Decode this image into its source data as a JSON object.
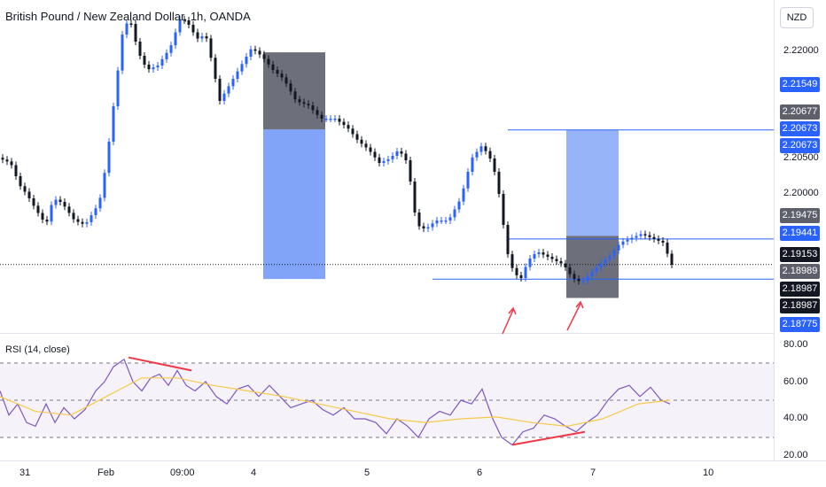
{
  "header": {
    "title": "British Pound / New Zealand Dollar, 1h, OANDA",
    "currency": "NZD"
  },
  "rsi": {
    "title": "RSI (14, close)",
    "levels": [
      30,
      50,
      70
    ],
    "axis_ticks": [
      "80.00",
      "60.00",
      "40.00",
      "20.00"
    ]
  },
  "price_axis": {
    "ticks": [
      "2.22000",
      "2.20500",
      "2.20000"
    ]
  },
  "price_labels": [
    {
      "text": "2.21549",
      "color": "#2962ff"
    },
    {
      "text": "2.20677",
      "color": "#5d606b"
    },
    {
      "text": "2.20673",
      "color": "#2962ff"
    },
    {
      "text": "2.20673",
      "color": "#2962ff"
    },
    {
      "text": "2.19475",
      "color": "#5d606b"
    },
    {
      "text": "2.19441",
      "color": "#2962ff"
    },
    {
      "text": "2.19153",
      "color": "#131722"
    },
    {
      "text": "2.18989",
      "color": "#5d606b"
    },
    {
      "text": "2.18987",
      "color": "#131722"
    },
    {
      "text": "2.18987",
      "color": "#131722"
    },
    {
      "text": "2.18775",
      "color": "#2962ff"
    }
  ],
  "x_axis": {
    "ticks": [
      "31",
      "Feb",
      "09:00",
      "4",
      "5",
      "6",
      "7",
      "10"
    ]
  },
  "colors": {
    "up": "#2962ff",
    "down": "#131722",
    "rsi_line": "#7e57c2",
    "rsi_ma": "#f7c948",
    "divergence": "#f23645",
    "level_line": "#2962ff",
    "zone_gray": "#5d606b",
    "zone_blue": "#6b94f7"
  },
  "chart_data": {
    "type": "candlestick",
    "symbol": "GBPNZD",
    "timeframe": "1h",
    "last_price": 2.19153,
    "horizontal_levels": [
      2.20673,
      2.19441,
      2.18987
    ],
    "position_zones": [
      {
        "name": "short",
        "entry": 2.20677,
        "stop": 2.21549,
        "target": 2.18989
      },
      {
        "name": "long",
        "entry": 2.19475,
        "stop": 2.18775,
        "target": 2.20673
      }
    ],
    "rsi_levels": [
      30,
      50,
      70
    ]
  }
}
